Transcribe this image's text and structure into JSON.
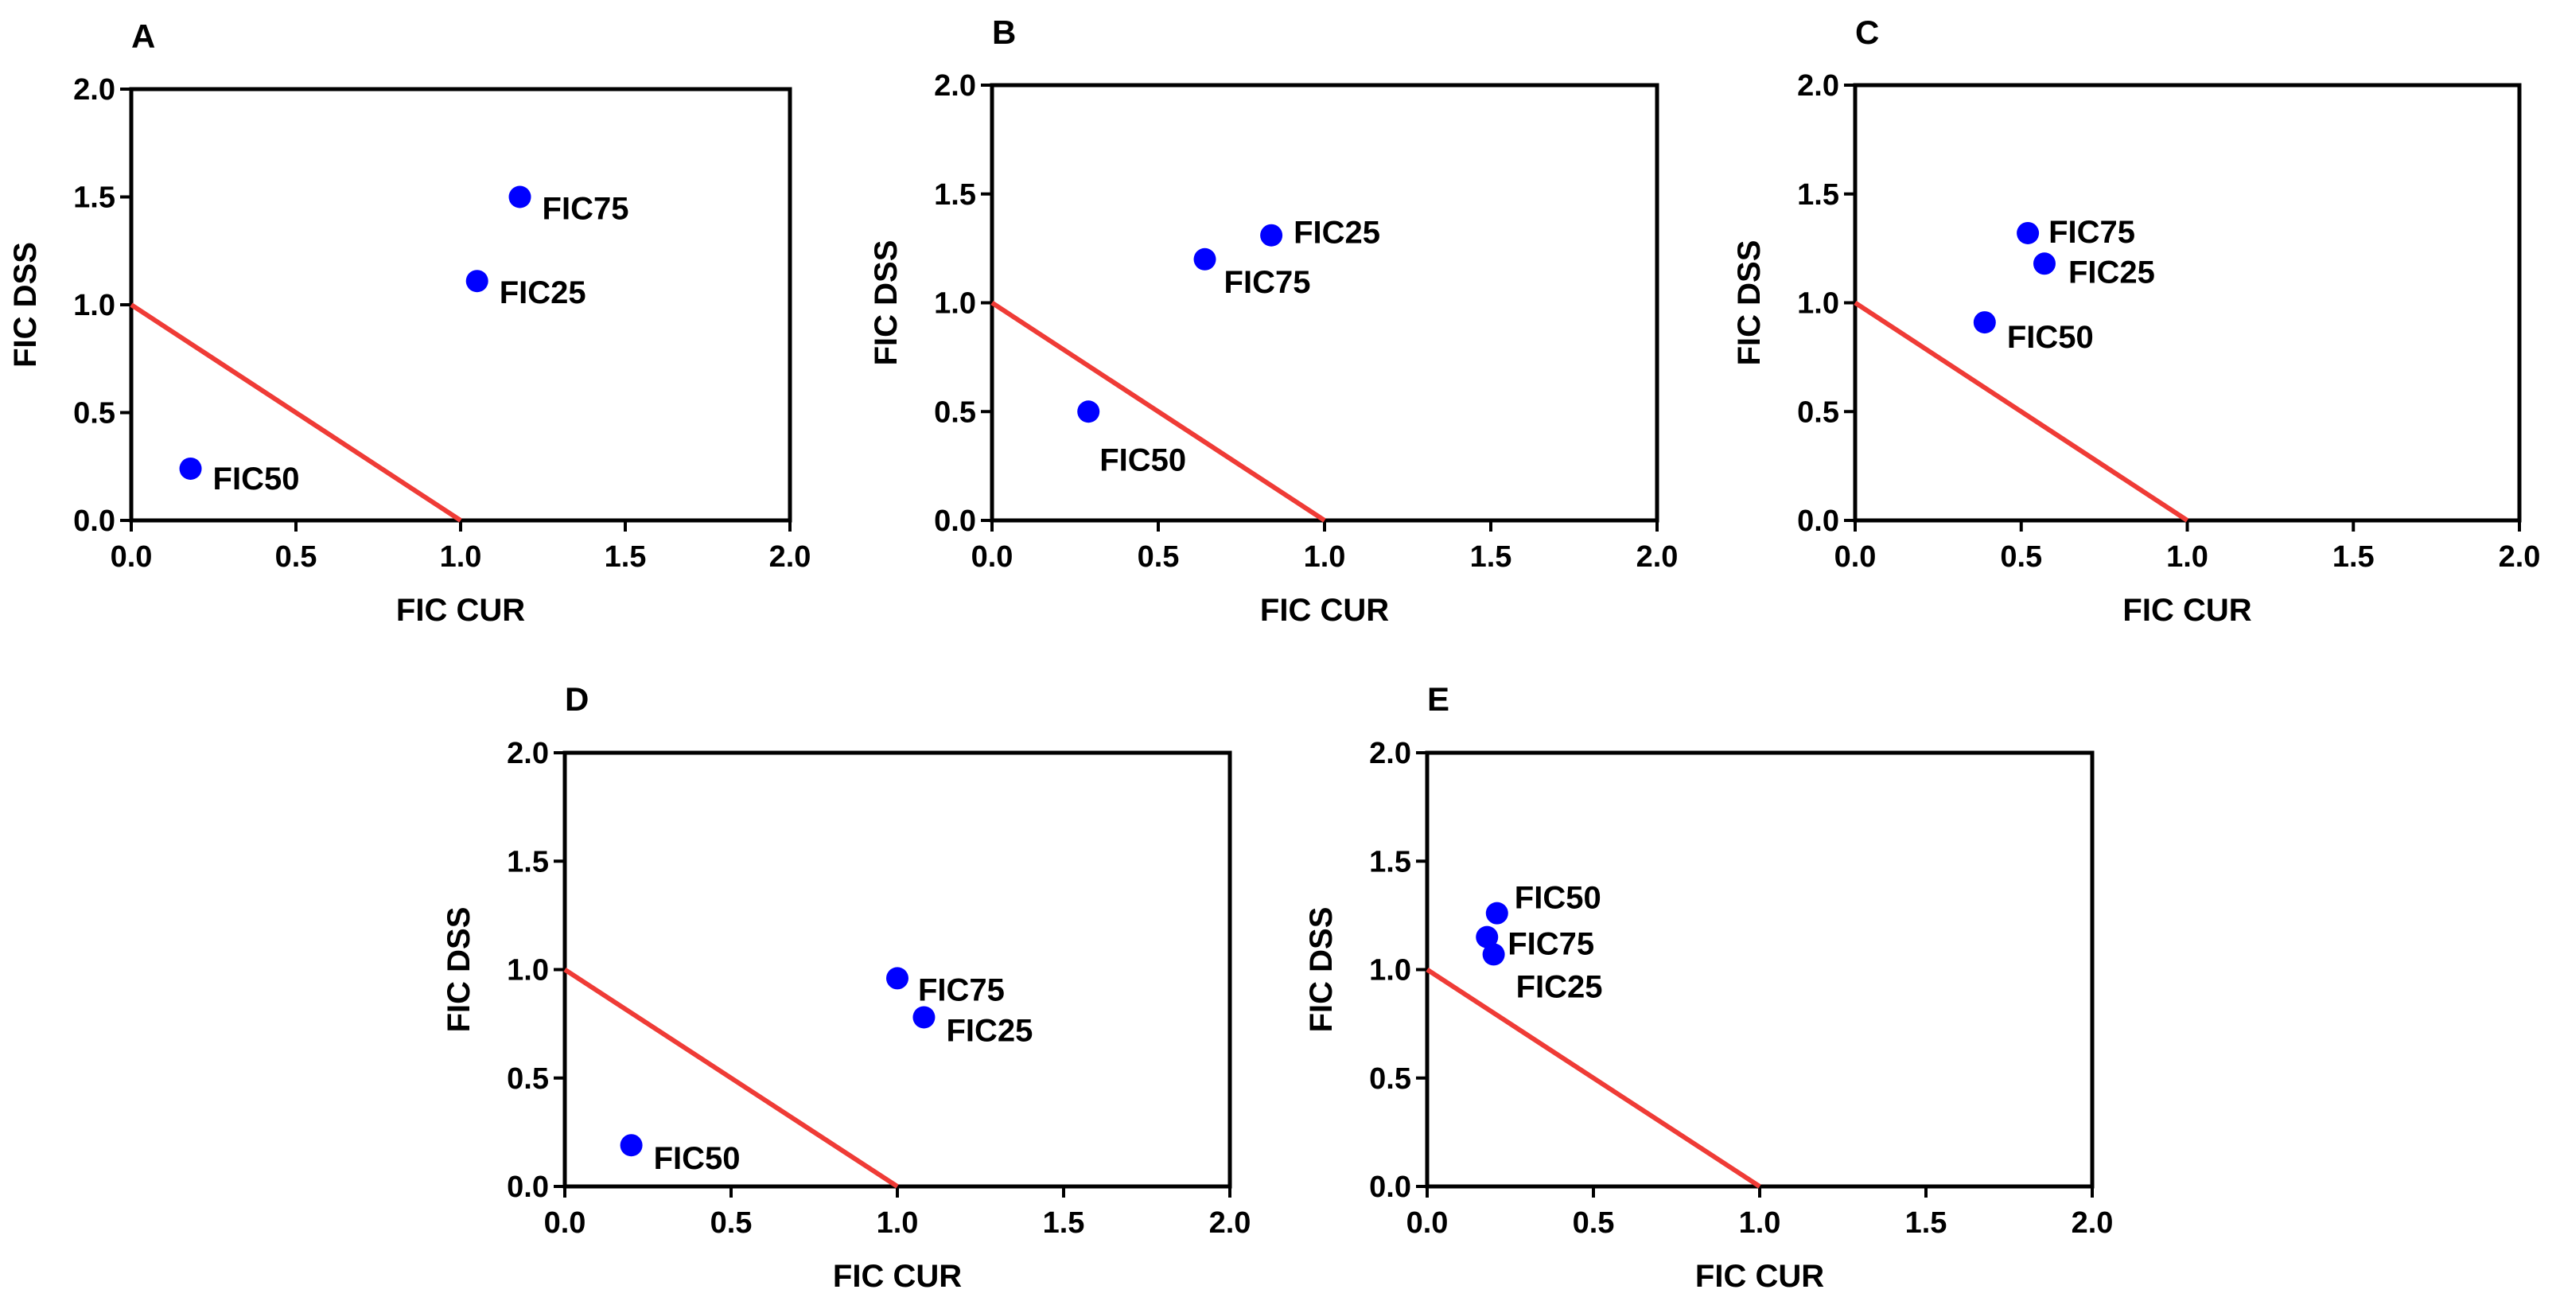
{
  "colors": {
    "point": "#0000ff",
    "line": "#ef3b36",
    "axis": "#000000"
  },
  "chart_data": [
    {
      "type": "scatter",
      "panel_label": "A",
      "xlabel": "FIC CUR",
      "ylabel": "FIC DSS",
      "xlim": [
        0,
        2
      ],
      "ylim": [
        0,
        2
      ],
      "xticks": [
        "0.0",
        "0.5",
        "1.0",
        "1.5",
        "2.0"
      ],
      "yticks": [
        "0.0",
        "0.5",
        "1.0",
        "1.5",
        "2.0"
      ],
      "grid": false,
      "additivity_line": {
        "from": [
          0,
          1
        ],
        "to": [
          1,
          0
        ]
      },
      "points": [
        {
          "label": "FIC75",
          "x": 1.18,
          "y": 1.5
        },
        {
          "label": "FIC25",
          "x": 1.05,
          "y": 1.11
        },
        {
          "label": "FIC50",
          "x": 0.18,
          "y": 0.24
        }
      ]
    },
    {
      "type": "scatter",
      "panel_label": "B",
      "xlabel": "FIC CUR",
      "ylabel": "FIC DSS",
      "xlim": [
        0,
        2
      ],
      "ylim": [
        0,
        2
      ],
      "xticks": [
        "0.0",
        "0.5",
        "1.0",
        "1.5",
        "2.0"
      ],
      "yticks": [
        "0.0",
        "0.5",
        "1.0",
        "1.5",
        "2.0"
      ],
      "grid": false,
      "additivity_line": {
        "from": [
          0,
          1
        ],
        "to": [
          1,
          0
        ]
      },
      "points": [
        {
          "label": "FIC25",
          "x": 0.84,
          "y": 1.31
        },
        {
          "label": "FIC75",
          "x": 0.64,
          "y": 1.2
        },
        {
          "label": "FIC50",
          "x": 0.29,
          "y": 0.5
        }
      ]
    },
    {
      "type": "scatter",
      "panel_label": "C",
      "xlabel": "FIC CUR",
      "ylabel": "FIC DSS",
      "xlim": [
        0,
        2
      ],
      "ylim": [
        0,
        2
      ],
      "xticks": [
        "0.0",
        "0.5",
        "1.0",
        "1.5",
        "2.0"
      ],
      "yticks": [
        "0.0",
        "0.5",
        "1.0",
        "1.5",
        "2.0"
      ],
      "grid": false,
      "additivity_line": {
        "from": [
          0,
          1
        ],
        "to": [
          1,
          0
        ]
      },
      "points": [
        {
          "label": "FIC75",
          "x": 0.52,
          "y": 1.32
        },
        {
          "label": "FIC25",
          "x": 0.57,
          "y": 1.18
        },
        {
          "label": "FIC50",
          "x": 0.39,
          "y": 0.91
        }
      ]
    },
    {
      "type": "scatter",
      "panel_label": "D",
      "xlabel": "FIC CUR",
      "ylabel": "FIC DSS",
      "xlim": [
        0,
        2
      ],
      "ylim": [
        0,
        2
      ],
      "xticks": [
        "0.0",
        "0.5",
        "1.0",
        "1.5",
        "2.0"
      ],
      "yticks": [
        "0.0",
        "0.5",
        "1.0",
        "1.5",
        "2.0"
      ],
      "grid": false,
      "additivity_line": {
        "from": [
          0,
          1
        ],
        "to": [
          1,
          0
        ]
      },
      "points": [
        {
          "label": "FIC75",
          "x": 1.0,
          "y": 0.96
        },
        {
          "label": "FIC25",
          "x": 1.08,
          "y": 0.78
        },
        {
          "label": "FIC50",
          "x": 0.2,
          "y": 0.19
        }
      ]
    },
    {
      "type": "scatter",
      "panel_label": "E",
      "xlabel": "FIC CUR",
      "ylabel": "FIC DSS",
      "xlim": [
        0,
        2
      ],
      "ylim": [
        0,
        2
      ],
      "xticks": [
        "0.0",
        "0.5",
        "1.0",
        "1.5",
        "2.0"
      ],
      "yticks": [
        "0.0",
        "0.5",
        "1.0",
        "1.5",
        "2.0"
      ],
      "grid": false,
      "additivity_line": {
        "from": [
          0,
          1
        ],
        "to": [
          1,
          0
        ]
      },
      "points": [
        {
          "label": "FIC50",
          "x": 0.21,
          "y": 1.26
        },
        {
          "label": "FIC75",
          "x": 0.18,
          "y": 1.15
        },
        {
          "label": "FIC25",
          "x": 0.2,
          "y": 1.07
        }
      ]
    }
  ]
}
